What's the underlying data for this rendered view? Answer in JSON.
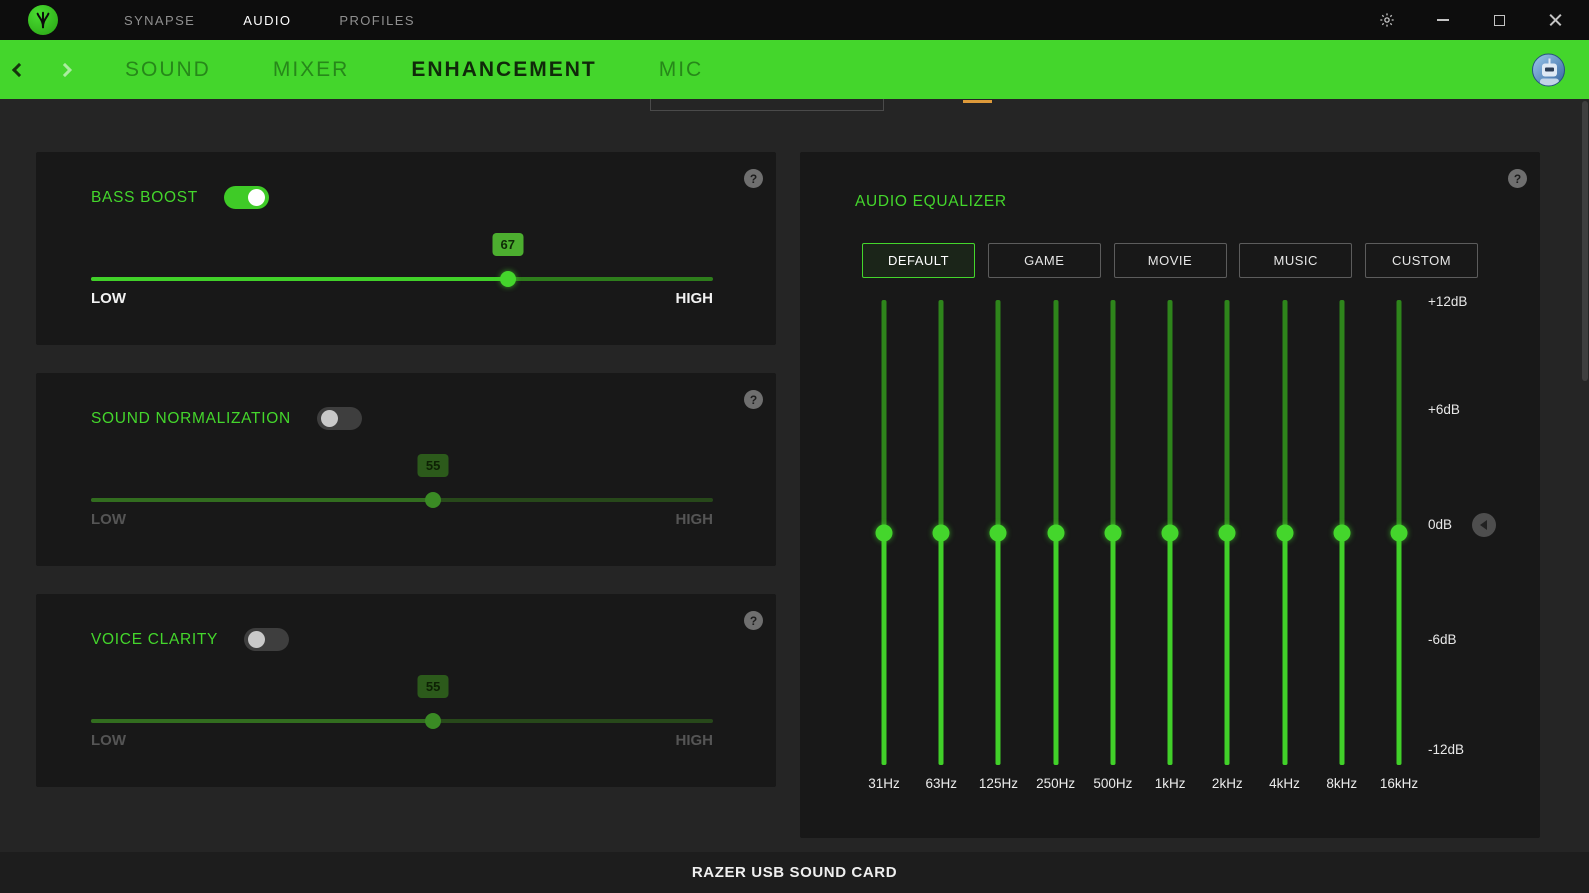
{
  "colors": {
    "accent": "#44d62c",
    "warning_marker": "#de9a3a"
  },
  "help_icon": "?",
  "titlebar": {
    "logo": "razer-logo",
    "menu": [
      {
        "label": "SYNAPSE",
        "active": false
      },
      {
        "label": "AUDIO",
        "active": true
      },
      {
        "label": "PROFILES",
        "active": false
      }
    ],
    "window_controls": [
      "settings",
      "minimize",
      "maximize",
      "close"
    ]
  },
  "subnav": {
    "tabs": [
      {
        "label": "SOUND",
        "active": false
      },
      {
        "label": "MIXER",
        "active": false
      },
      {
        "label": "ENHANCEMENT",
        "active": true
      },
      {
        "label": "MIC",
        "active": false
      }
    ]
  },
  "cards": {
    "bass_boost": {
      "title": "BASS BOOST",
      "enabled": true,
      "value": 67,
      "min_label": "LOW",
      "max_label": "HIGH"
    },
    "sound_normalization": {
      "title": "SOUND NORMALIZATION",
      "enabled": false,
      "value": 55,
      "min_label": "LOW",
      "max_label": "HIGH"
    },
    "voice_clarity": {
      "title": "VOICE CLARITY",
      "enabled": false,
      "value": 55,
      "min_label": "LOW",
      "max_label": "HIGH"
    }
  },
  "equalizer": {
    "title": "AUDIO EQUALIZER",
    "presets": [
      {
        "label": "DEFAULT",
        "selected": true
      },
      {
        "label": "GAME",
        "selected": false
      },
      {
        "label": "MOVIE",
        "selected": false
      },
      {
        "label": "MUSIC",
        "selected": false
      },
      {
        "label": "CUSTOM",
        "selected": false
      }
    ],
    "db_labels": [
      "+12dB",
      "+6dB",
      "0dB",
      "-6dB",
      "-12dB"
    ],
    "range_db": [
      -12,
      12
    ],
    "bands": [
      {
        "freq": "31Hz",
        "gain_db": 0
      },
      {
        "freq": "63Hz",
        "gain_db": 0
      },
      {
        "freq": "125Hz",
        "gain_db": 0
      },
      {
        "freq": "250Hz",
        "gain_db": 0
      },
      {
        "freq": "500Hz",
        "gain_db": 0
      },
      {
        "freq": "1kHz",
        "gain_db": 0
      },
      {
        "freq": "2kHz",
        "gain_db": 0
      },
      {
        "freq": "4kHz",
        "gain_db": 0
      },
      {
        "freq": "8kHz",
        "gain_db": 0
      },
      {
        "freq": "16kHz",
        "gain_db": 0
      }
    ]
  },
  "footer": {
    "device_name": "RAZER USB SOUND CARD"
  }
}
